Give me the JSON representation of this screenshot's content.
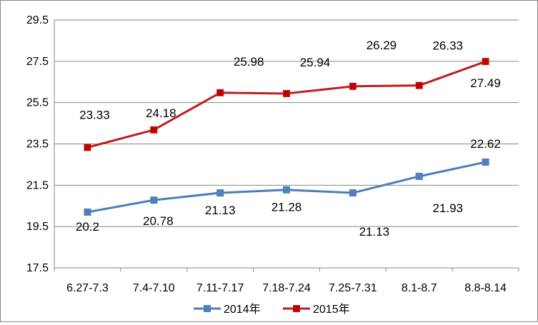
{
  "chart_data": {
    "type": "line",
    "title": "",
    "xlabel": "",
    "ylabel": "",
    "categories": [
      "6.27-7.3",
      "7.4-7.10",
      "7.11-7.17",
      "7.18-7.24",
      "7.25-7.31",
      "8.1-8.7",
      "8.8-8.14"
    ],
    "ylim": [
      17.5,
      29.5
    ],
    "yticks": [
      17.5,
      19.5,
      21.5,
      23.5,
      25.5,
      27.5,
      29.5
    ],
    "ytick_labels": [
      "17.5",
      "19.5",
      "21.5",
      "23.5",
      "25.5",
      "27.5",
      "29.5"
    ],
    "grid": true,
    "legend_position": "bottom",
    "series": [
      {
        "name": "2014年",
        "color": "#4a7ebb",
        "marker_color": "#4f81bd",
        "values": [
          20.2,
          20.78,
          21.13,
          21.28,
          21.13,
          21.93,
          22.62
        ],
        "labels": [
          "20.2",
          "20.78",
          "21.13",
          "21.28",
          "21.13",
          "21.93",
          "22.62"
        ]
      },
      {
        "name": "2015年",
        "color": "#be1e1e",
        "marker_color": "#c00000",
        "values": [
          23.33,
          24.18,
          25.98,
          25.94,
          26.29,
          26.33,
          27.49
        ],
        "labels": [
          "23.33",
          "24.18",
          "25.98",
          "25.94",
          "26.29",
          "26.33",
          "27.49"
        ]
      }
    ]
  }
}
